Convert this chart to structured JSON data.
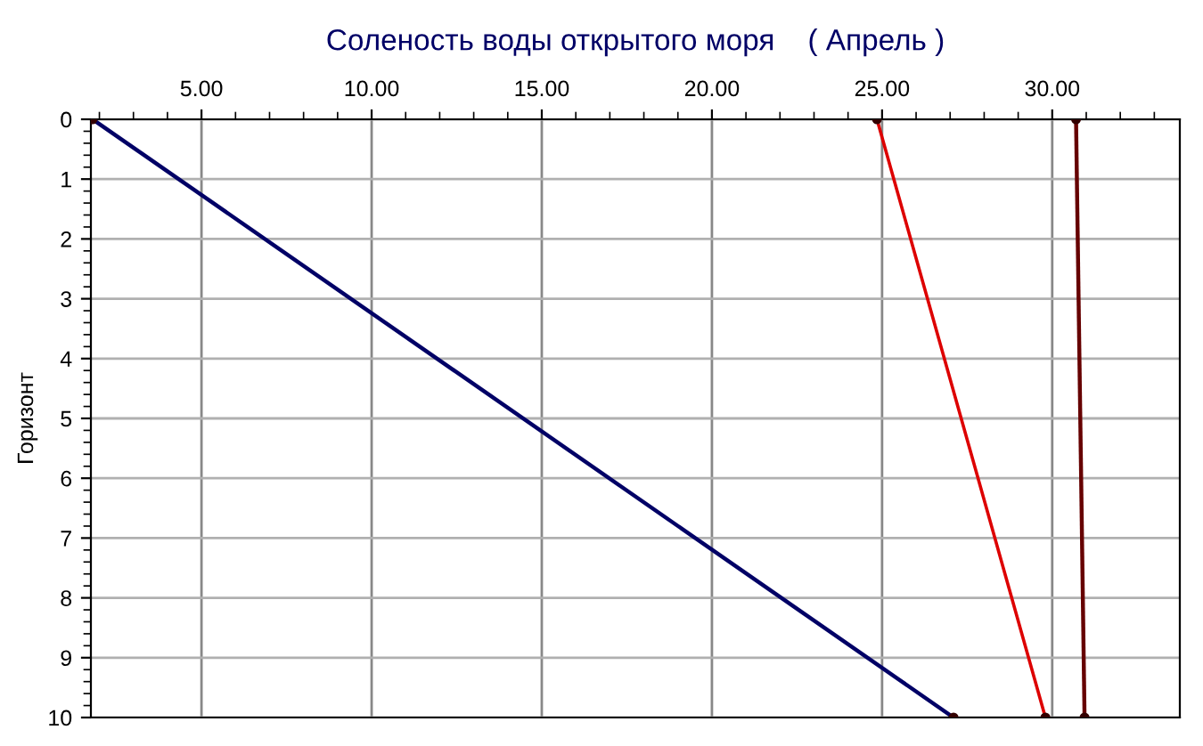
{
  "chart_data": {
    "type": "line",
    "title": "Соленость воды открытого моря    ( Апрель )",
    "ylabel": "Горизонт",
    "series": [
      {
        "color": "#000066",
        "x": [
          1.8,
          27.1
        ],
        "values": [
          0,
          10
        ]
      },
      {
        "color": "#dd0000",
        "x": [
          24.85,
          29.8
        ],
        "values": [
          0,
          10
        ]
      },
      {
        "color": "#660000",
        "x": [
          30.7,
          30.95
        ],
        "values": [
          0,
          10
        ]
      }
    ],
    "xlim": [
      1.75,
      33.75
    ],
    "xticks": [
      {
        "value": 5,
        "label": "5.00"
      },
      {
        "value": 10,
        "label": "10.00"
      },
      {
        "value": 15,
        "label": "15.00"
      },
      {
        "value": 20,
        "label": "20.00"
      },
      {
        "value": 25,
        "label": "25.00"
      },
      {
        "value": 30,
        "label": "30.00"
      }
    ],
    "ylim": [
      10,
      0
    ],
    "yticks": [
      0,
      1,
      2,
      3,
      4,
      5,
      6,
      7,
      8,
      9,
      10
    ],
    "grid": true,
    "marker": "circle",
    "line_style": "solid",
    "legend": false
  }
}
